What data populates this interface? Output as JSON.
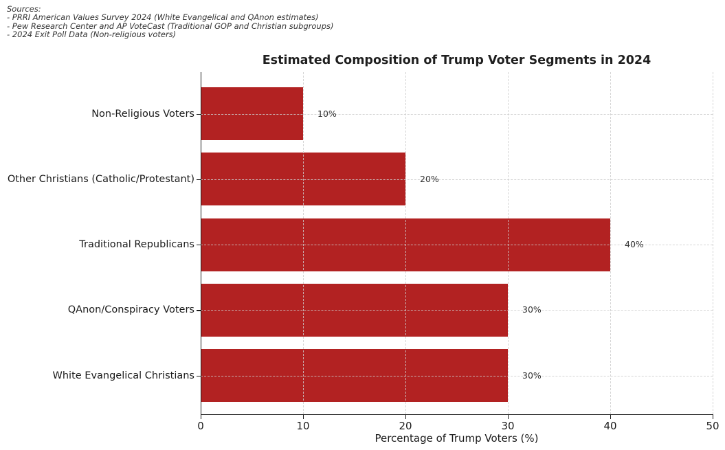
{
  "sources": {
    "lines": [
      "Sources:",
      "- PRRI American Values Survey 2024 (White Evangelical and QAnon estimates)",
      "- Pew Research Center and AP VoteCast (Traditional GOP and Christian subgroups)",
      "- 2024 Exit Poll Data (Non-religious voters)"
    ]
  },
  "chart_data": {
    "type": "bar",
    "orientation": "horizontal",
    "title": "Estimated Composition of Trump Voter Segments in 2024",
    "xlabel": "Percentage of Trump Voters (%)",
    "ylabel": "",
    "categories": [
      "Non-Religious Voters",
      "Other Christians (Catholic/Protestant)",
      "Traditional Republicans",
      "QAnon/Conspiracy Voters",
      "White Evangelical Christians"
    ],
    "values": [
      10,
      20,
      40,
      30,
      30
    ],
    "value_labels": [
      "10%",
      "20%",
      "40%",
      "30%",
      "30%"
    ],
    "xlim": [
      0,
      50
    ],
    "xticks": [
      0,
      10,
      20,
      30,
      40,
      50
    ],
    "xtick_labels": [
      "0",
      "10",
      "20",
      "30",
      "40",
      "50"
    ],
    "grid": "dashed, both axes, light gray",
    "legend": "none",
    "bar_color": "#b22222",
    "grid_color": "#d3d3d3",
    "text_color": "#1a1a1a"
  }
}
